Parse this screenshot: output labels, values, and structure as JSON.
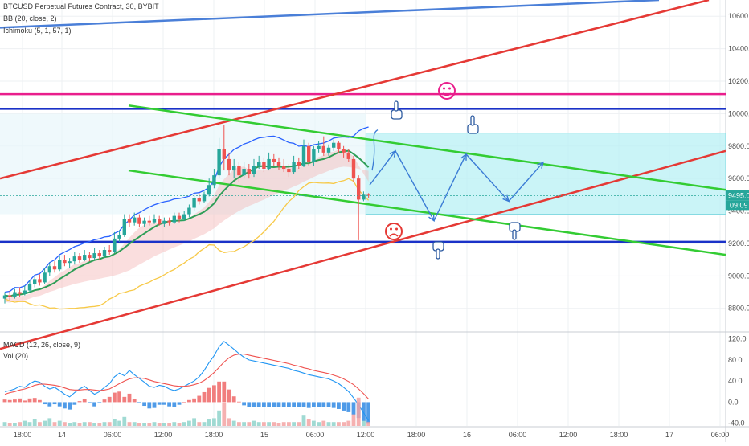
{
  "header": {
    "symbol": "BTCUSD Perpetual Futures Contract, 30, BYBIT",
    "bb": "BB (20, close, 2)",
    "ichimoku": "Ichimoku (5, 1, 57, 1)",
    "macd": "MACD (12, 26, close, 9)",
    "vol": "Vol (20)"
  },
  "price_axis": {
    "ticks": [
      "10600.0",
      "10400.0",
      "10200.0",
      "10000.0",
      "9800.0",
      "9600.0",
      "9400.0",
      "9200.0",
      "9000.0",
      "8800.0"
    ],
    "last_price": "9495.0",
    "countdown": "09:09"
  },
  "macd_axis": {
    "ticks": [
      "120.0",
      "80.0",
      "40.0",
      "0.0",
      "-40.0"
    ]
  },
  "time_axis": {
    "ticks": [
      "18:00",
      "14",
      "06:00",
      "12:00",
      "18:00",
      "15",
      "06:00",
      "12:00",
      "18:00",
      "16",
      "06:00",
      "12:00",
      "18:00",
      "17",
      "06:00"
    ]
  },
  "colors": {
    "up": "#26a69a",
    "down": "#ef5350",
    "red_line": "#e53935",
    "blue_line": "#1a32c8",
    "magenta_line": "#e91e8c",
    "green_line": "#33cc33",
    "cyan_zone": "#b8f0f4",
    "arrow": "#3a7bd5",
    "bb_upper": "#2962ff",
    "bb_lower": "#f7c948",
    "kijun": "#2e9e57",
    "cloud": "#f5b5b5",
    "macd": "#2196f3",
    "signal": "#ef5350"
  },
  "chart_data": {
    "type": "candlestick",
    "price_range": [
      8660,
      10700
    ],
    "candles": [
      {
        "o": 8860,
        "c": 8880,
        "h": 8900,
        "l": 8830
      },
      {
        "o": 8880,
        "c": 8870,
        "h": 8910,
        "l": 8850
      },
      {
        "o": 8870,
        "c": 8900,
        "h": 8920,
        "l": 8860
      },
      {
        "o": 8900,
        "c": 8890,
        "h": 8930,
        "l": 8870
      },
      {
        "o": 8890,
        "c": 8910,
        "h": 8940,
        "l": 8880
      },
      {
        "o": 8910,
        "c": 8950,
        "h": 8970,
        "l": 8900
      },
      {
        "o": 8950,
        "c": 8980,
        "h": 9000,
        "l": 8930
      },
      {
        "o": 8980,
        "c": 8960,
        "h": 9010,
        "l": 8940
      },
      {
        "o": 8960,
        "c": 9020,
        "h": 9050,
        "l": 8950
      },
      {
        "o": 9020,
        "c": 9060,
        "h": 9080,
        "l": 9000
      },
      {
        "o": 9060,
        "c": 9040,
        "h": 9090,
        "l": 9020
      },
      {
        "o": 9040,
        "c": 9100,
        "h": 9120,
        "l": 9030
      },
      {
        "o": 9100,
        "c": 9080,
        "h": 9130,
        "l": 9060
      },
      {
        "o": 9080,
        "c": 9090,
        "h": 9110,
        "l": 9050
      },
      {
        "o": 9090,
        "c": 9120,
        "h": 9150,
        "l": 9070
      },
      {
        "o": 9120,
        "c": 9100,
        "h": 9140,
        "l": 9080
      },
      {
        "o": 9100,
        "c": 9130,
        "h": 9160,
        "l": 9090
      },
      {
        "o": 9130,
        "c": 9110,
        "h": 9150,
        "l": 9090
      },
      {
        "o": 9110,
        "c": 9140,
        "h": 9170,
        "l": 9100
      },
      {
        "o": 9140,
        "c": 9120,
        "h": 9160,
        "l": 9100
      },
      {
        "o": 9120,
        "c": 9160,
        "h": 9180,
        "l": 9110
      },
      {
        "o": 9160,
        "c": 9150,
        "h": 9190,
        "l": 9130
      },
      {
        "o": 9150,
        "c": 9230,
        "h": 9270,
        "l": 9140
      },
      {
        "o": 9230,
        "c": 9250,
        "h": 9280,
        "l": 9210
      },
      {
        "o": 9250,
        "c": 9350,
        "h": 9380,
        "l": 9240
      },
      {
        "o": 9350,
        "c": 9330,
        "h": 9380,
        "l": 9300
      },
      {
        "o": 9330,
        "c": 9360,
        "h": 9390,
        "l": 9310
      },
      {
        "o": 9360,
        "c": 9320,
        "h": 9380,
        "l": 9300
      },
      {
        "o": 9320,
        "c": 9340,
        "h": 9360,
        "l": 9300
      },
      {
        "o": 9340,
        "c": 9330,
        "h": 9370,
        "l": 9310
      },
      {
        "o": 9330,
        "c": 9350,
        "h": 9380,
        "l": 9320
      },
      {
        "o": 9350,
        "c": 9320,
        "h": 9370,
        "l": 9310
      },
      {
        "o": 9320,
        "c": 9340,
        "h": 9360,
        "l": 9300
      },
      {
        "o": 9340,
        "c": 9330,
        "h": 9360,
        "l": 9310
      },
      {
        "o": 9330,
        "c": 9370,
        "h": 9390,
        "l": 9320
      },
      {
        "o": 9370,
        "c": 9350,
        "h": 9390,
        "l": 9330
      },
      {
        "o": 9350,
        "c": 9380,
        "h": 9400,
        "l": 9340
      },
      {
        "o": 9380,
        "c": 9420,
        "h": 9440,
        "l": 9360
      },
      {
        "o": 9420,
        "c": 9480,
        "h": 9500,
        "l": 9400
      },
      {
        "o": 9480,
        "c": 9460,
        "h": 9510,
        "l": 9440
      },
      {
        "o": 9460,
        "c": 9500,
        "h": 9520,
        "l": 9450
      },
      {
        "o": 9500,
        "c": 9560,
        "h": 9600,
        "l": 9490
      },
      {
        "o": 9560,
        "c": 9620,
        "h": 9660,
        "l": 9540
      },
      {
        "o": 9620,
        "c": 9780,
        "h": 9850,
        "l": 9600
      },
      {
        "o": 9780,
        "c": 9720,
        "h": 9930,
        "l": 9650
      },
      {
        "o": 9720,
        "c": 9650,
        "h": 9760,
        "l": 9620
      },
      {
        "o": 9650,
        "c": 9680,
        "h": 9720,
        "l": 9600
      },
      {
        "o": 9680,
        "c": 9620,
        "h": 9700,
        "l": 9580
      },
      {
        "o": 9620,
        "c": 9660,
        "h": 9700,
        "l": 9600
      },
      {
        "o": 9660,
        "c": 9630,
        "h": 9690,
        "l": 9600
      },
      {
        "o": 9630,
        "c": 9680,
        "h": 9720,
        "l": 9610
      },
      {
        "o": 9680,
        "c": 9700,
        "h": 9740,
        "l": 9660
      },
      {
        "o": 9700,
        "c": 9660,
        "h": 9730,
        "l": 9640
      },
      {
        "o": 9660,
        "c": 9720,
        "h": 9760,
        "l": 9650
      },
      {
        "o": 9720,
        "c": 9700,
        "h": 9750,
        "l": 9680
      },
      {
        "o": 9700,
        "c": 9680,
        "h": 9730,
        "l": 9650
      },
      {
        "o": 9680,
        "c": 9660,
        "h": 9720,
        "l": 9640
      },
      {
        "o": 9660,
        "c": 9640,
        "h": 9690,
        "l": 9610
      },
      {
        "o": 9640,
        "c": 9700,
        "h": 9740,
        "l": 9630
      },
      {
        "o": 9700,
        "c": 9680,
        "h": 9730,
        "l": 9660
      },
      {
        "o": 9680,
        "c": 9800,
        "h": 9840,
        "l": 9670
      },
      {
        "o": 9800,
        "c": 9700,
        "h": 9820,
        "l": 9680
      },
      {
        "o": 9700,
        "c": 9780,
        "h": 9800,
        "l": 9680
      },
      {
        "o": 9780,
        "c": 9800,
        "h": 9830,
        "l": 9760
      },
      {
        "o": 9800,
        "c": 9760,
        "h": 9860,
        "l": 9740
      },
      {
        "o": 9760,
        "c": 9790,
        "h": 9810,
        "l": 9740
      },
      {
        "o": 9790,
        "c": 9820,
        "h": 9840,
        "l": 9770
      },
      {
        "o": 9820,
        "c": 9780,
        "h": 9830,
        "l": 9760
      },
      {
        "o": 9780,
        "c": 9760,
        "h": 9800,
        "l": 9730
      },
      {
        "o": 9760,
        "c": 9720,
        "h": 9780,
        "l": 9700
      },
      {
        "o": 9720,
        "c": 9600,
        "h": 9740,
        "l": 9580
      },
      {
        "o": 9600,
        "c": 9470,
        "h": 9620,
        "l": 9220
      },
      {
        "o": 9470,
        "c": 9500,
        "h": 9520,
        "l": 9460
      },
      {
        "o": 9500,
        "c": 9495,
        "h": 9510,
        "l": 9480
      }
    ],
    "annotation_lines": {
      "upper_blue_line": [
        10530,
        10700
      ],
      "resistance_magenta": 10120,
      "resistance_blue": 10030,
      "support_blue": 9210,
      "red_channel_upper": [
        9600,
        10700
      ],
      "red_channel_lower": [
        8550,
        9770
      ],
      "green_channel_upper": [
        10050,
        9530
      ],
      "green_channel_lower": [
        9650,
        9130
      ],
      "target_zone": [
        9380,
        9880
      ]
    },
    "macd_range": [
      -45,
      130
    ],
    "macd_line": [
      20,
      22,
      25,
      30,
      28,
      35,
      40,
      38,
      30,
      25,
      28,
      22,
      15,
      10,
      18,
      25,
      30,
      22,
      15,
      20,
      28,
      35,
      48,
      55,
      50,
      60,
      52,
      45,
      38,
      30,
      28,
      32,
      30,
      25,
      22,
      25,
      30,
      35,
      40,
      48,
      60,
      75,
      88,
      105,
      115,
      108,
      100,
      92,
      85,
      80,
      78,
      76,
      74,
      72,
      70,
      68,
      66,
      64,
      60,
      58,
      55,
      52,
      50,
      48,
      46,
      44,
      40,
      35,
      28,
      20,
      8,
      -5,
      -20,
      -35
    ],
    "signal_line": [
      15,
      18,
      20,
      23,
      25,
      28,
      32,
      34,
      34,
      33,
      32,
      30,
      27,
      24,
      23,
      23,
      24,
      24,
      23,
      22,
      23,
      25,
      30,
      35,
      40,
      44,
      46,
      46,
      45,
      42,
      39,
      37,
      35,
      33,
      31,
      30,
      30,
      31,
      33,
      36,
      41,
      48,
      56,
      66,
      76,
      84,
      89,
      91,
      91,
      89,
      87,
      85,
      83,
      81,
      79,
      77,
      75,
      73,
      70,
      68,
      65,
      63,
      60,
      58,
      56,
      54,
      51,
      48,
      44,
      39,
      33,
      25,
      16,
      6
    ],
    "histogram": [
      5,
      4,
      5,
      7,
      3,
      7,
      8,
      4,
      -4,
      -8,
      -4,
      -8,
      -12,
      -14,
      -5,
      2,
      6,
      -2,
      -8,
      -2,
      5,
      10,
      18,
      20,
      10,
      16,
      6,
      -1,
      -7,
      -12,
      -11,
      -5,
      -5,
      -8,
      -9,
      -5,
      0,
      4,
      7,
      12,
      19,
      27,
      32,
      39,
      39,
      24,
      11,
      1,
      -6,
      -9,
      -9,
      -9,
      -9,
      -9,
      -9,
      -9,
      -9,
      -9,
      -10,
      -10,
      -10,
      -11,
      -10,
      -10,
      -10,
      -10,
      -11,
      -13,
      -16,
      -19,
      -25,
      -30,
      -36,
      -41
    ],
    "volume": [
      3,
      2,
      2,
      3,
      4,
      3,
      5,
      3,
      4,
      6,
      3,
      4,
      3,
      2,
      3,
      2,
      3,
      3,
      2,
      2,
      3,
      3,
      5,
      4,
      7,
      3,
      3,
      2,
      2,
      2,
      3,
      2,
      2,
      2,
      3,
      2,
      3,
      4,
      6,
      3,
      3,
      5,
      6,
      12,
      18,
      6,
      4,
      3,
      3,
      3,
      4,
      3,
      3,
      3,
      3,
      2,
      3,
      3,
      3,
      3,
      8,
      5,
      4,
      3,
      4,
      3,
      3,
      3,
      3,
      4,
      9,
      22,
      4,
      3
    ]
  }
}
